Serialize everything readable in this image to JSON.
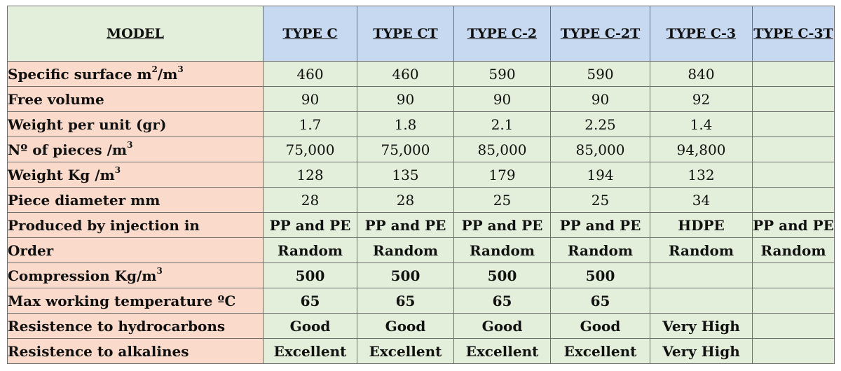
{
  "header": {
    "model": "MODEL",
    "types": [
      "TYPE  C",
      "TYPE  CT",
      "TYPE  C-2",
      "TYPE C-2T",
      "TYPE  C-3",
      "TYPE C-3T"
    ]
  },
  "rows": [
    {
      "label": "Specific surface m",
      "sup1": "2",
      "mid": "/m",
      "sup2": "3",
      "values": [
        "460",
        "460",
        "590",
        "590",
        "840",
        ""
      ],
      "bold": false
    },
    {
      "label": "Free volume",
      "values": [
        "90",
        "90",
        "90",
        "90",
        "92",
        ""
      ],
      "bold": false
    },
    {
      "label": "Weight per unit (gr)",
      "values": [
        "1.7",
        "1.8",
        "2.1",
        "2.25",
        "1.4",
        ""
      ],
      "bold": false
    },
    {
      "label": "Nº of pieces /m",
      "sup1": "3",
      "values": [
        "75,000",
        "75,000",
        "85,000",
        "85,000",
        "94,800",
        ""
      ],
      "bold": false
    },
    {
      "label": "Weight Kg /m",
      "sup1": "3",
      "values": [
        "128",
        "135",
        "179",
        "194",
        "132",
        ""
      ],
      "bold": false
    },
    {
      "label": "Piece diameter mm",
      "values": [
        "28",
        "28",
        "25",
        "25",
        "34",
        ""
      ],
      "bold": false
    },
    {
      "label": "Produced by injection in",
      "values": [
        "PP and PE",
        "PP and PE",
        "PP and PE",
        "PP and PE",
        "HDPE",
        "PP and PE"
      ],
      "bold": true
    },
    {
      "label": "Order",
      "values": [
        "Random",
        "Random",
        "Random",
        "Random",
        "Random",
        "Random"
      ],
      "bold": true
    },
    {
      "label": "Compression  Kg/m",
      "sup1": "3",
      "values": [
        "500",
        "500",
        "500",
        "500",
        "",
        ""
      ],
      "bold": true
    },
    {
      "label": "Max working temperature ºC",
      "values": [
        "65",
        "65",
        "65",
        "65",
        "",
        ""
      ],
      "bold": true
    },
    {
      "label": "Resistence to hydrocarbons",
      "values": [
        "Good",
        "Good",
        "Good",
        "Good",
        "Very High",
        ""
      ],
      "bold": true
    },
    {
      "label": "Resistence to alkalines",
      "values": [
        "Excellent",
        "Excellent",
        "Excellent",
        "Excellent",
        "Very High",
        ""
      ],
      "bold": true
    }
  ]
}
